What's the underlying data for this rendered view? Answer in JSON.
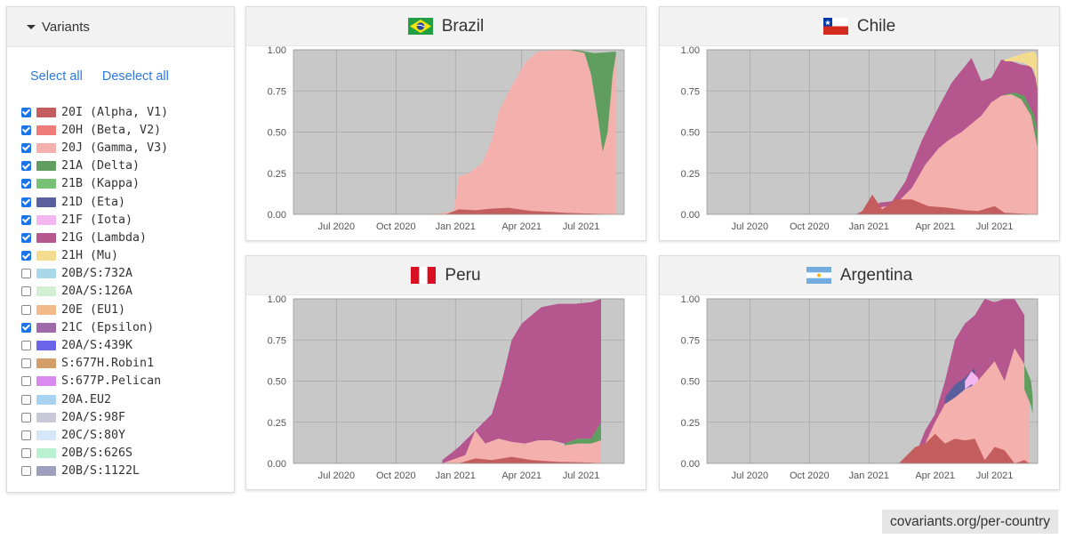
{
  "sidebar": {
    "title": "Variants",
    "select_all": "Select all",
    "deselect_all": "Deselect all",
    "variants": [
      {
        "label": "20I (Alpha, V1)",
        "color": "#c45e5e",
        "checked": true
      },
      {
        "label": "20H (Beta, V2)",
        "color": "#ef7b7b",
        "checked": true
      },
      {
        "label": "20J (Gamma, V3)",
        "color": "#f4b0ac",
        "checked": true
      },
      {
        "label": "21A (Delta)",
        "color": "#5f9e5f",
        "checked": true
      },
      {
        "label": "21B (Kappa)",
        "color": "#77c277",
        "checked": true
      },
      {
        "label": "21D (Eta)",
        "color": "#5a5f9e",
        "checked": true
      },
      {
        "label": "21F (Iota)",
        "color": "#f3b6f0",
        "checked": true
      },
      {
        "label": "21G (Lambda)",
        "color": "#b5568f",
        "checked": true
      },
      {
        "label": "21H (Mu)",
        "color": "#f3dc8f",
        "checked": true
      },
      {
        "label": "20B/S:732A",
        "color": "#a8d8ea",
        "checked": false
      },
      {
        "label": "20A/S:126A",
        "color": "#d3efd3",
        "checked": false
      },
      {
        "label": "20E (EU1)",
        "color": "#f2b98a",
        "checked": false
      },
      {
        "label": "21C (Epsilon)",
        "color": "#9e6aaa",
        "checked": true
      },
      {
        "label": "20A/S:439K",
        "color": "#6a64e8",
        "checked": false
      },
      {
        "label": "S:677H.Robin1",
        "color": "#d49e6a",
        "checked": false
      },
      {
        "label": "S:677P.Pelican",
        "color": "#d98af0",
        "checked": false
      },
      {
        "label": "20A.EU2",
        "color": "#a7d3f0",
        "checked": false
      },
      {
        "label": "20A/S:98F",
        "color": "#c8c8d8",
        "checked": false
      },
      {
        "label": "20C/S:80Y",
        "color": "#d4e6f8",
        "checked": false
      },
      {
        "label": "20B/S:626S",
        "color": "#b8f0d0",
        "checked": false
      },
      {
        "label": "20B/S:1122L",
        "color": "#9fa0c0",
        "checked": false
      }
    ]
  },
  "charts": [
    {
      "country": "Brazil",
      "flag": "brazil-flag-icon"
    },
    {
      "country": "Chile",
      "flag": "chile-flag-icon"
    },
    {
      "country": "Peru",
      "flag": "peru-flag-icon"
    },
    {
      "country": "Argentina",
      "flag": "argentina-flag-icon"
    }
  ],
  "axis": {
    "y_ticks": [
      "1.00",
      "0.75",
      "0.50",
      "0.25",
      "0.00"
    ],
    "x_ticks": [
      "Jul 2020",
      "Oct 2020",
      "Jan 2021",
      "Apr 2021",
      "Jul 2021"
    ]
  },
  "colors": {
    "plot_bg": "#c8c8c8",
    "alpha": "#c45e5e",
    "gamma": "#f4b0ac",
    "delta": "#5f9e5f",
    "lambda": "#b5568f",
    "mu": "#f3dc8f",
    "eta": "#5a5f9e",
    "iota": "#f3b6f0"
  },
  "footer": "covariants.org/per-country"
}
